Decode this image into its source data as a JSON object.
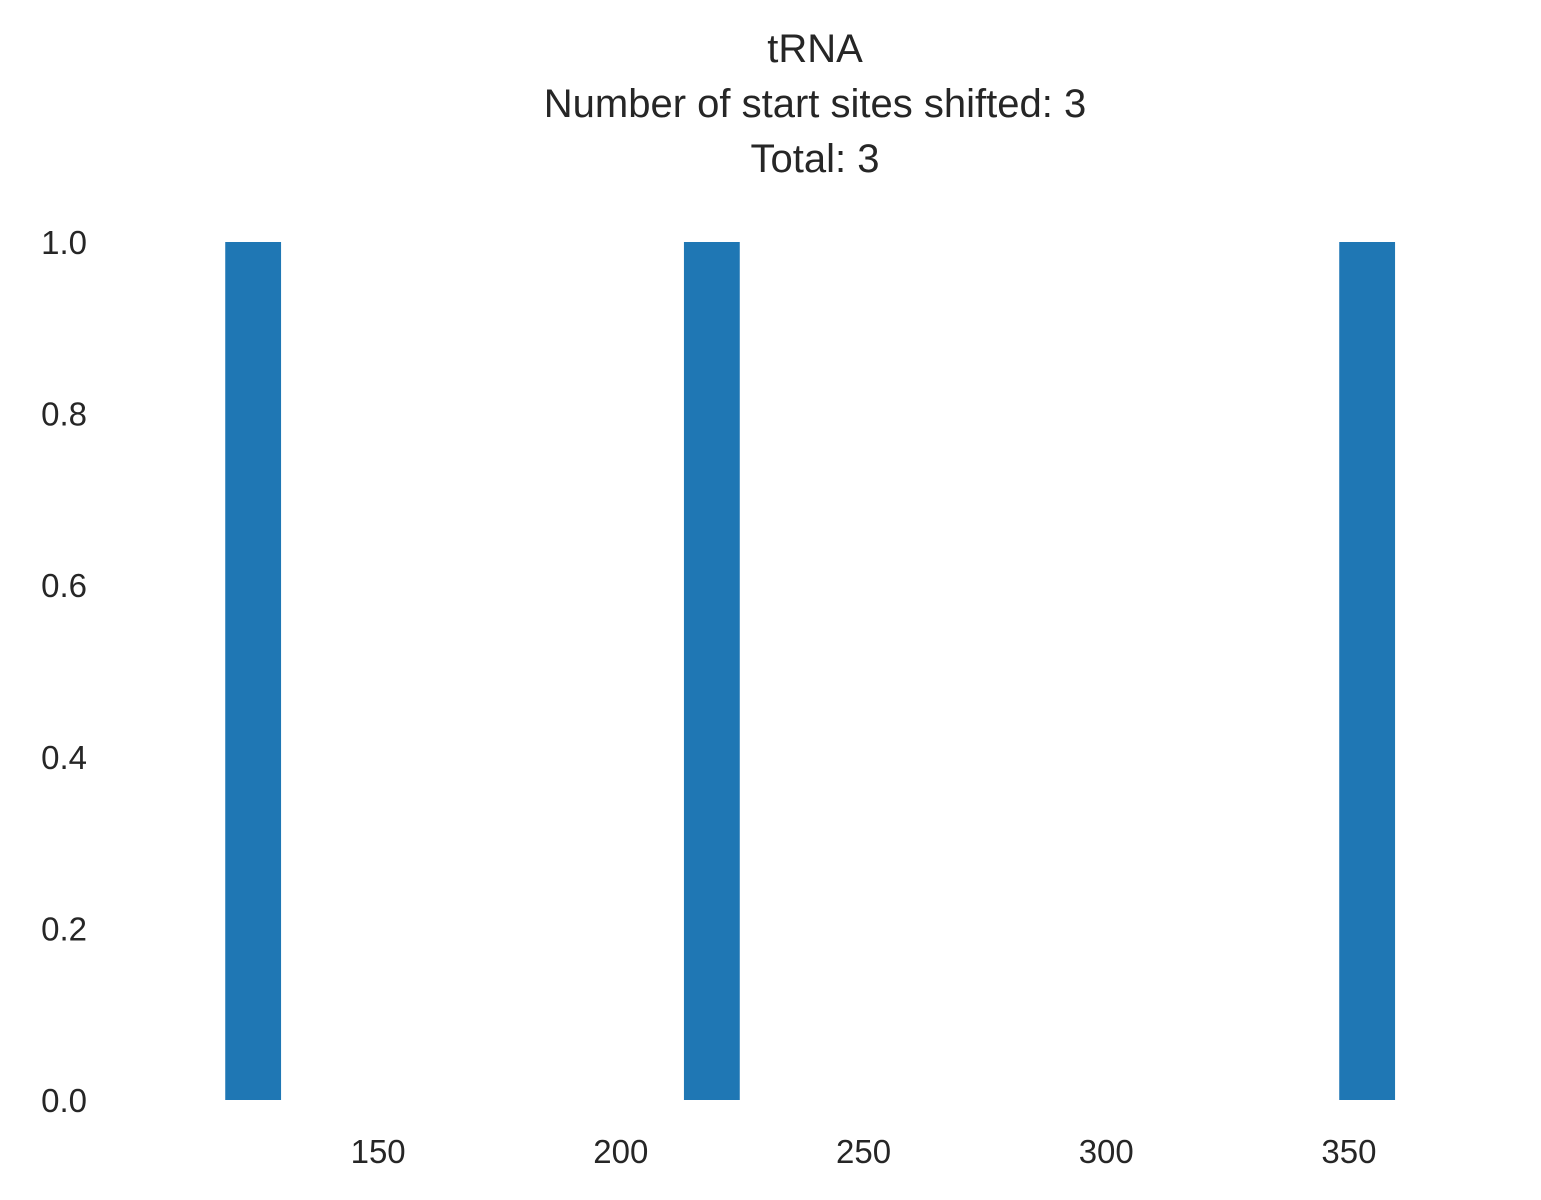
{
  "chart_data": {
    "type": "bar",
    "title_lines": [
      "tRNA",
      "Number of start sites shifted: 3",
      "Total: 3"
    ],
    "xlabel": "",
    "ylabel": "",
    "bins": [
      {
        "x0": 118.5,
        "x1": 130.0,
        "count": 1
      },
      {
        "x0": 213.0,
        "x1": 224.5,
        "count": 1
      },
      {
        "x0": 348.0,
        "x1": 359.5,
        "count": 1
      }
    ],
    "xlim": [
      103.0,
      377.0
    ],
    "ylim": [
      0,
      1.0
    ],
    "x_ticks": [
      150,
      200,
      250,
      300,
      350
    ],
    "y_ticks": [
      "0.0",
      "0.2",
      "0.4",
      "0.6",
      "0.8",
      "1.0"
    ],
    "grid": false,
    "bar_color": "#1f77b4"
  }
}
